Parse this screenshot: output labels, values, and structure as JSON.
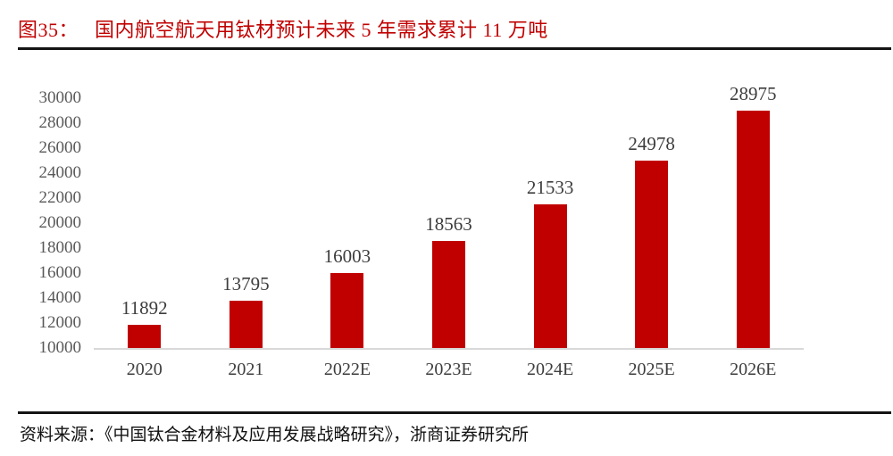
{
  "header": {
    "figure_label": "图35：",
    "title": "国内航空航天用钛材预计未来 5 年需求累计 11 万吨"
  },
  "footer": {
    "source": "资料来源：《中国钛合金材料及应用发展战略研究》，浙商证券研究所"
  },
  "colors": {
    "bar": "#c00000",
    "title_text": "#c00000",
    "axis_line": "#d9d9d9",
    "ytick_label": "#595959",
    "data_label": "#3d3d3d",
    "divider_rule": "#141414"
  },
  "chart_data": {
    "type": "bar",
    "title": "国内航空航天用钛材预计未来 5 年需求累计 11 万吨",
    "categories": [
      "2020",
      "2021",
      "2022E",
      "2023E",
      "2024E",
      "2025E",
      "2026E"
    ],
    "values": [
      11892,
      13795,
      16003,
      18563,
      21533,
      24978,
      28975
    ],
    "data_labels_shown": true,
    "xlabel": "",
    "ylabel": "",
    "ylim": [
      10000,
      30000
    ],
    "yticks": [
      10000,
      12000,
      14000,
      16000,
      18000,
      20000,
      22000,
      24000,
      26000,
      28000,
      30000
    ],
    "grid": false,
    "legend": "none",
    "bar_color": "#c00000"
  }
}
